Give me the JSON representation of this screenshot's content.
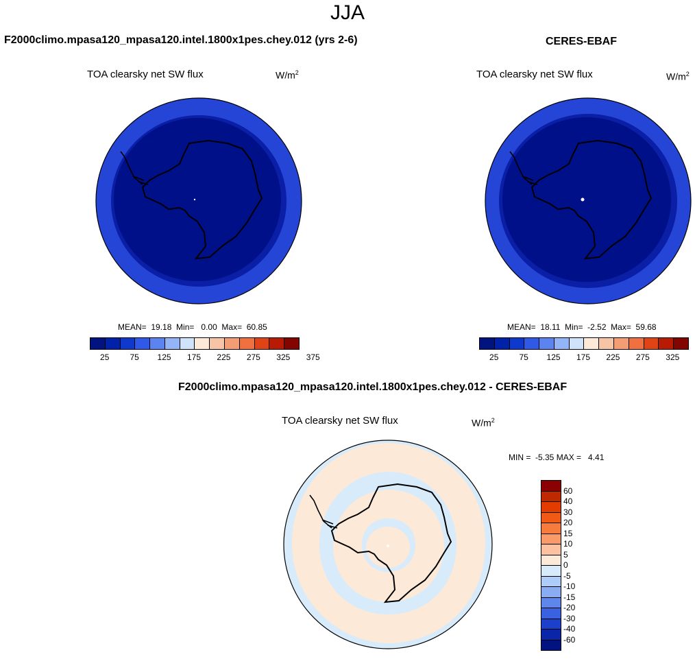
{
  "figure": {
    "season": "JJA"
  },
  "panel_test": {
    "title": "F2000climo.mpasa120_mpasa120.intel.1800x1pes.chey.012 (yrs 2-6)",
    "variable": "TOA clearsky net SW flux",
    "units_base": "W/m",
    "units_exp": "2",
    "stats": "MEAN=  19.18  Min=   0.00  Max=  60.85"
  },
  "panel_obs": {
    "title": "CERES-EBAF",
    "variable": "TOA clearsky net SW flux",
    "units_base": "W/m",
    "units_exp": "2",
    "stats": "MEAN=  18.11  Min=  -2.52  Max=  59.68"
  },
  "panel_diff": {
    "title": "F2000climo.mpasa120_mpasa120.intel.1800x1pes.chey.012 - CERES-EBAF",
    "variable": "TOA clearsky net SW flux",
    "units_base": "W/m",
    "units_exp": "2",
    "stats": "MIN =  -5.35 MAX =   4.41"
  },
  "abs_colorbar": {
    "colors": [
      "#00137f",
      "#0022a8",
      "#0f38cc",
      "#2f59e6",
      "#5b84f0",
      "#93b4f7",
      "#cfe4fb",
      "#fde9d8",
      "#f7c4a6",
      "#f49c73",
      "#f0703f",
      "#e04316",
      "#b81a03",
      "#820500"
    ],
    "ticks": [
      "25",
      "75",
      "125",
      "175",
      "225",
      "275",
      "325",
      "375"
    ]
  },
  "diff_colorbar": {
    "colors": [
      "#8b0000",
      "#c02800",
      "#e23c00",
      "#f05a14",
      "#f77b3c",
      "#f99a68",
      "#fcc1a1",
      "#fde9d8",
      "#d7ebfb",
      "#aeccf9",
      "#89acf3",
      "#5f86eb",
      "#3a62e0",
      "#1c40cc",
      "#0b25a8",
      "#00137f"
    ],
    "labels": [
      "60",
      "40",
      "30",
      "20",
      "15",
      "10",
      "5",
      "0",
      "-5",
      "-10",
      "-15",
      "-20",
      "-30",
      "-40",
      "-60"
    ]
  },
  "map_colors": {
    "outer_ring": "#2445d6",
    "mid_ring": "#0a1ea6",
    "core": "#001089",
    "diff_warm": "#fde9d8",
    "diff_cool": "#d7ebfb"
  }
}
